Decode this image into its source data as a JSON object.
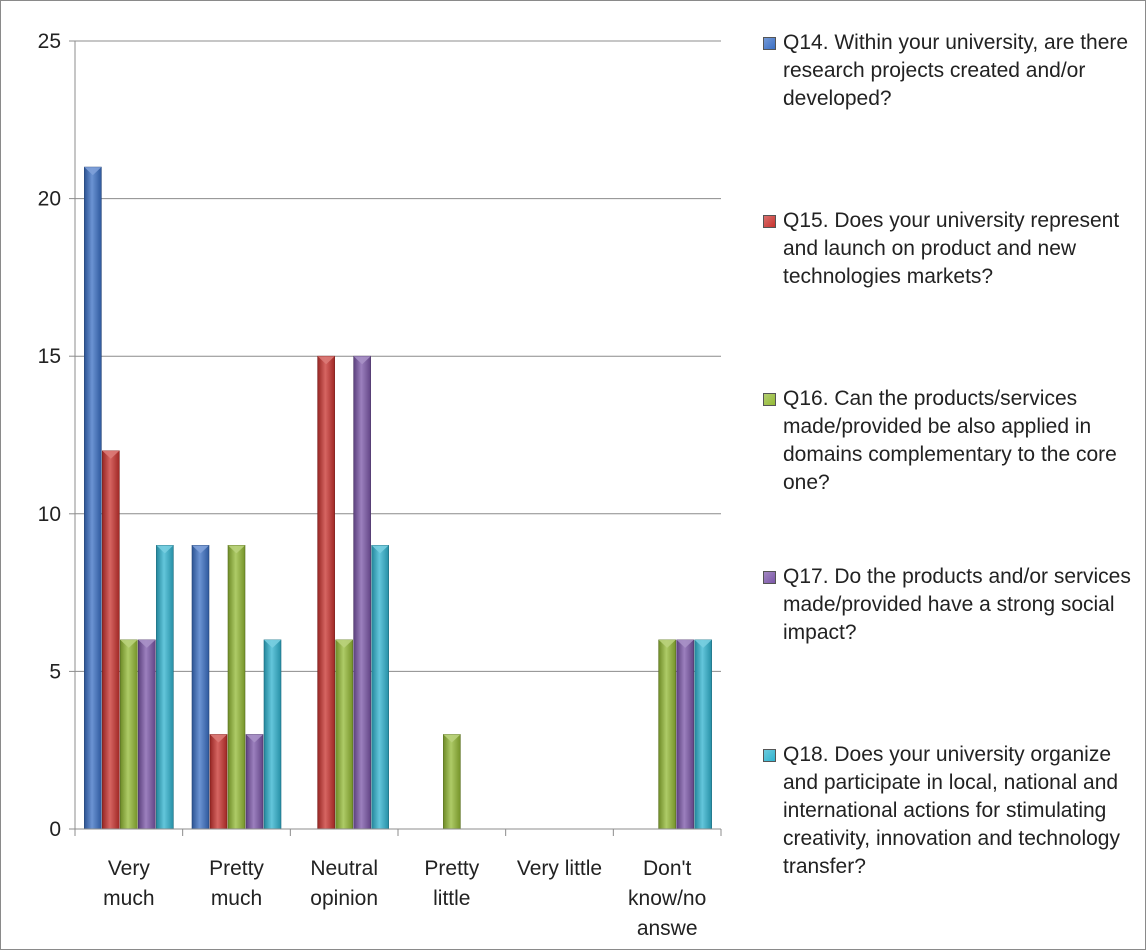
{
  "chart_data": {
    "type": "bar",
    "title": "",
    "xlabel": "",
    "ylabel": "",
    "ylim": [
      0,
      25
    ],
    "yticks": [
      0,
      5,
      10,
      15,
      20,
      25
    ],
    "grid": true,
    "legend_position": "right",
    "categories": [
      [
        "Very",
        "much"
      ],
      [
        "Pretty",
        "much"
      ],
      [
        "Neutral",
        "opinion"
      ],
      [
        "Pretty",
        "little"
      ],
      [
        "Very little"
      ],
      [
        "Don't",
        "know/no",
        "answe"
      ]
    ],
    "series": [
      {
        "name": "Q14. Within your university, are there research projects created and/or developed?",
        "color": "#3a6fc4",
        "values": [
          21,
          9,
          0,
          0,
          0,
          0
        ]
      },
      {
        "name": "Q15. Does your university represent and launch on product and new technologies markets?",
        "color": "#c8322e",
        "values": [
          12,
          3,
          15,
          0,
          0,
          0
        ]
      },
      {
        "name": "Q16. Can the products/services made/provided be also applied in domains complementary to the core one?",
        "color": "#93b934",
        "values": [
          6,
          9,
          6,
          3,
          0,
          6
        ]
      },
      {
        "name": "Q17. Do the products and/or services made/provided have a strong social impact?",
        "color": "#7b56a8",
        "values": [
          6,
          3,
          15,
          0,
          0,
          6
        ]
      },
      {
        "name": "Q18. Does your university organize and participate in local, national and international actions for stimulating creativity, innovation and technology transfer?",
        "color": "#2fb3cf",
        "values": [
          9,
          6,
          9,
          0,
          0,
          6
        ]
      }
    ]
  }
}
